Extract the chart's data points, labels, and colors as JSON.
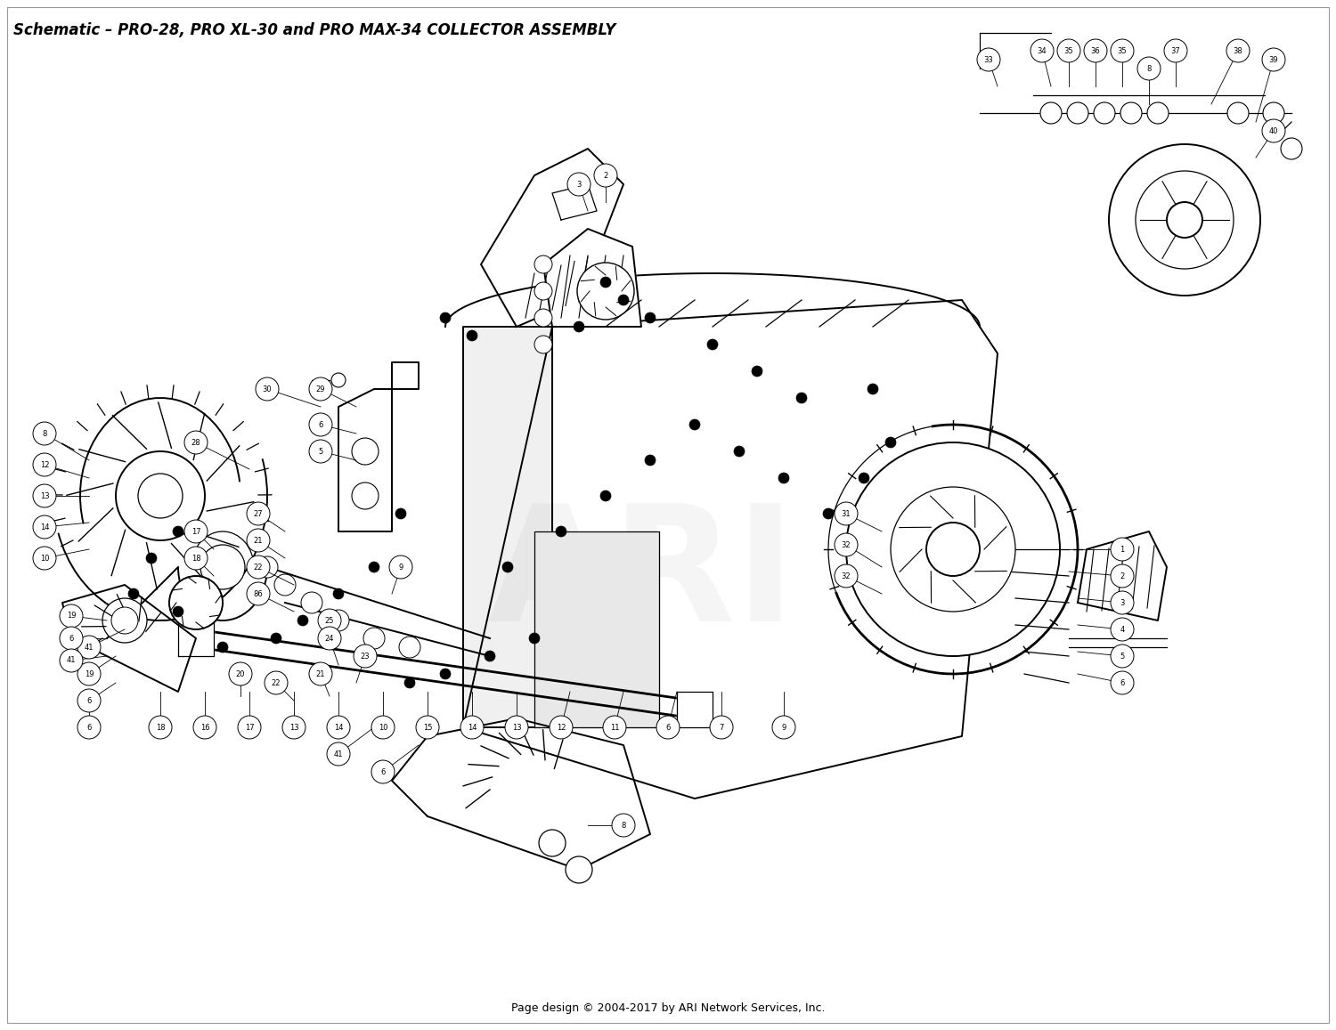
{
  "title": "Schematic – PRO-28, PRO XL-30 and PRO MAX-34 COLLECTOR ASSEMBLY",
  "footer": "Page design © 2004-2017 by ARI Network Services, Inc.",
  "bg_color": "#ffffff",
  "border_color": "#aaaaaa",
  "title_fontsize": 12,
  "footer_fontsize": 9,
  "fig_width": 15.0,
  "fig_height": 11.57,
  "dpi": 100,
  "watermark_alpha": 0.08,
  "lw_main": 1.4,
  "lw_thin": 0.9,
  "lw_thick": 2.0
}
